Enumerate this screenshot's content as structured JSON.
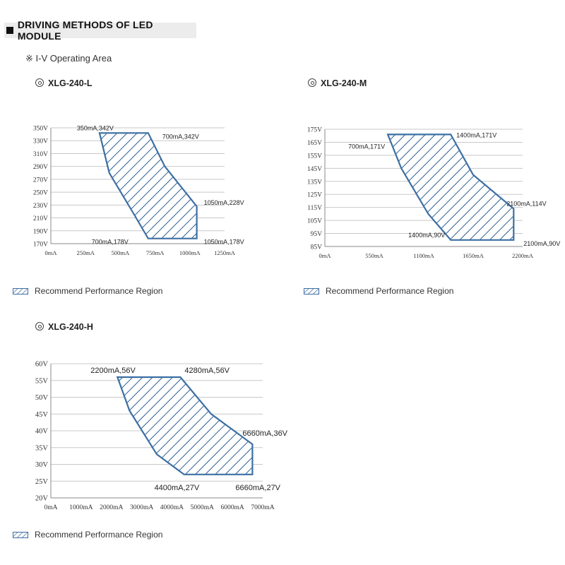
{
  "header": {
    "title": "DRIVING METHODS OF LED MODULE"
  },
  "subtitle": "※ I-V Operating Area",
  "legend_label": "Recommend Performance Region",
  "colors": {
    "fill": "#ffffff",
    "stroke": "#3c6fa3",
    "hatch": "#2e5f93",
    "grid": "#c8c8c8",
    "axis": "#888888"
  },
  "chart_data": [
    {
      "model": "XLG-240-L",
      "type": "area",
      "title": "XLG-240-L",
      "xlabel": "",
      "ylabel": "",
      "xlim": [
        0,
        1250
      ],
      "ylim": [
        170,
        350
      ],
      "xticks": [
        0,
        250,
        500,
        750,
        1000,
        1250
      ],
      "xtick_labels": [
        "0mA",
        "250mA",
        "500mA",
        "750mA",
        "1000mA",
        "1250mA"
      ],
      "yticks": [
        170,
        190,
        210,
        230,
        250,
        270,
        290,
        310,
        330,
        350
      ],
      "ytick_labels": [
        "170V",
        "190V",
        "210V",
        "230V",
        "250V",
        "270V",
        "290V",
        "310V",
        "330V",
        "350V"
      ],
      "grid": true,
      "region": [
        [
          350,
          342
        ],
        [
          700,
          342
        ],
        [
          820,
          290
        ],
        [
          1050,
          228
        ],
        [
          1050,
          178
        ],
        [
          700,
          178
        ],
        [
          600,
          215
        ],
        [
          420,
          280
        ],
        [
          350,
          342
        ]
      ],
      "annotations": [
        {
          "text": "350mA,342V",
          "x": 350,
          "y": 342
        },
        {
          "text": "700mA,342V",
          "x": 700,
          "y": 342
        },
        {
          "text": "1050mA,228V",
          "x": 1050,
          "y": 228
        },
        {
          "text": "700mA,178V",
          "x": 700,
          "y": 178
        },
        {
          "text": "1050mA,178V",
          "x": 1050,
          "y": 178
        }
      ]
    },
    {
      "model": "XLG-240-M",
      "type": "area",
      "title": "XLG-240-M",
      "xlabel": "",
      "ylabel": "",
      "xlim": [
        0,
        2200
      ],
      "ylim": [
        85,
        175
      ],
      "xticks": [
        0,
        550,
        1100,
        1650,
        2200
      ],
      "xtick_labels": [
        "0mA",
        "550mA",
        "1100mA",
        "1650mA",
        "2200mA"
      ],
      "yticks": [
        85,
        95,
        105,
        115,
        125,
        135,
        145,
        155,
        165,
        175
      ],
      "ytick_labels": [
        "85V",
        "95V",
        "105V",
        "115V",
        "125V",
        "135V",
        "145V",
        "155V",
        "165V",
        "175V"
      ],
      "grid": true,
      "region": [
        [
          700,
          171
        ],
        [
          1400,
          171
        ],
        [
          1650,
          140
        ],
        [
          2100,
          114
        ],
        [
          2100,
          90
        ],
        [
          1400,
          90
        ],
        [
          1150,
          110
        ],
        [
          850,
          145
        ],
        [
          700,
          171
        ]
      ],
      "annotations": [
        {
          "text": "700mA,171V",
          "x": 700,
          "y": 171
        },
        {
          "text": "1400mA,171V",
          "x": 1400,
          "y": 171
        },
        {
          "text": "2100mA,114V",
          "x": 2100,
          "y": 114
        },
        {
          "text": "1400mA,90V",
          "x": 1400,
          "y": 90
        },
        {
          "text": "2100mA,90V",
          "x": 2100,
          "y": 90
        }
      ]
    },
    {
      "model": "XLG-240-H",
      "type": "area",
      "title": "XLG-240-H",
      "xlabel": "",
      "ylabel": "",
      "xlim": [
        0,
        7000
      ],
      "ylim": [
        20,
        60
      ],
      "xticks": [
        0,
        1000,
        2000,
        3000,
        4000,
        5000,
        6000,
        7000
      ],
      "xtick_labels": [
        "0mA",
        "1000mA",
        "2000mA",
        "3000mA",
        "4000mA",
        "5000mA",
        "6000mA",
        "7000mA"
      ],
      "yticks": [
        20,
        25,
        30,
        35,
        40,
        45,
        50,
        55,
        60
      ],
      "ytick_labels": [
        "20V",
        "25V",
        "30V",
        "35V",
        "40V",
        "45V",
        "50V",
        "55V",
        "60V"
      ],
      "grid": true,
      "region": [
        [
          2200,
          56
        ],
        [
          4280,
          56
        ],
        [
          5300,
          45
        ],
        [
          6660,
          36
        ],
        [
          6660,
          27
        ],
        [
          4400,
          27
        ],
        [
          3500,
          33
        ],
        [
          2600,
          46
        ],
        [
          2200,
          56
        ]
      ],
      "annotations": [
        {
          "text": "2200mA,56V",
          "x": 2200,
          "y": 56
        },
        {
          "text": "4280mA,56V",
          "x": 4280,
          "y": 56
        },
        {
          "text": "6660mA,36V",
          "x": 6660,
          "y": 36
        },
        {
          "text": "4400mA,27V",
          "x": 4400,
          "y": 27
        },
        {
          "text": "6660mA,27V",
          "x": 6660,
          "y": 27
        }
      ]
    }
  ]
}
